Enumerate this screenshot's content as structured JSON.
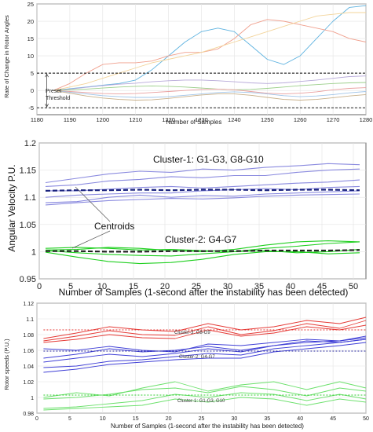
{
  "chart_data": [
    {
      "type": "line",
      "xlabel": "Number of Samples",
      "ylabel": "Rate of Change in Rotor Angles",
      "xlim": [
        1180,
        1280
      ],
      "ylim": [
        -7,
        25
      ],
      "xticks": [
        1180,
        1190,
        1200,
        1210,
        1220,
        1230,
        1240,
        1250,
        1260,
        1270,
        1280
      ],
      "yticks": [
        -5,
        0,
        5,
        10,
        15,
        20,
        25
      ],
      "grid": true,
      "thresholds": [
        5,
        -5
      ],
      "annotation": "Preset\nThreshold",
      "x": [
        1185,
        1190,
        1195,
        1200,
        1205,
        1210,
        1215,
        1220,
        1225,
        1230,
        1235,
        1240,
        1245,
        1250,
        1255,
        1260,
        1265,
        1270,
        1275,
        1280
      ],
      "series": [
        {
          "color": "#5fb3e0",
          "values": [
            0,
            0.5,
            1,
            1.5,
            2,
            3,
            6,
            10,
            14,
            17,
            18,
            17,
            13,
            9,
            7.5,
            10,
            15,
            20,
            24,
            24.5
          ]
        },
        {
          "color": "#f0a08e",
          "values": [
            0,
            2,
            5,
            7.5,
            8,
            8,
            8.5,
            10,
            11,
            11,
            12,
            15,
            19,
            20.5,
            20,
            19,
            18,
            17,
            15,
            14
          ]
        },
        {
          "color": "#f3d49a",
          "values": [
            0,
            1,
            2,
            3.5,
            5,
            6.5,
            8,
            9,
            10,
            11,
            12.5,
            14,
            15.5,
            17,
            18.5,
            20,
            21.5,
            22,
            22.5,
            22.5
          ]
        },
        {
          "color": "#b7a9d9",
          "values": [
            0,
            0.4,
            0.9,
            1.4,
            1.8,
            2.1,
            2.5,
            2.8,
            3,
            3,
            2.8,
            2.5,
            2.2,
            2,
            2.2,
            2.6,
            3,
            3.5,
            4,
            4.2
          ]
        },
        {
          "color": "#9ccf8b",
          "values": [
            0,
            0.2,
            0.4,
            0.7,
            1,
            1.2,
            1.3,
            1.2,
            1,
            0.7,
            0.4,
            0.2,
            0.3,
            0.6,
            1,
            1.4,
            1.7,
            2,
            2.2,
            2.3
          ]
        },
        {
          "color": "#e9a0a0",
          "values": [
            0,
            -0.3,
            -0.6,
            -0.9,
            -1,
            -0.9,
            -0.6,
            -0.3,
            0,
            0.3,
            0.4,
            0.2,
            -0.3,
            -0.8,
            -1,
            -0.8,
            -0.4,
            0.2,
            0.6,
            0.8
          ]
        },
        {
          "color": "#a0c4e8",
          "values": [
            0,
            -0.5,
            -1,
            -1.5,
            -1.8,
            -2,
            -2,
            -1.8,
            -1.4,
            -1,
            -0.6,
            -0.4,
            -0.6,
            -1,
            -1.5,
            -1.8,
            -1.6,
            -1.2,
            -0.7,
            -0.3
          ]
        },
        {
          "color": "#c8b08a",
          "values": [
            0,
            -0.8,
            -1.6,
            -2.2,
            -2.6,
            -2.8,
            -2.7,
            -2.3,
            -1.8,
            -1.3,
            -1,
            -1,
            -1.4,
            -2,
            -2.6,
            -2.8,
            -2.6,
            -2.1,
            -1.6,
            -1.2
          ]
        }
      ]
    },
    {
      "type": "line",
      "xlabel": "Number of Samples (1-second after the instability has been detected)",
      "ylabel": "Angular Velocity P.U.",
      "xlim": [
        0,
        52
      ],
      "ylim": [
        0.95,
        1.2
      ],
      "xticks": [
        0,
        5,
        10,
        15,
        20,
        25,
        30,
        35,
        40,
        45,
        50
      ],
      "yticks": [
        0.95,
        1,
        1.05,
        1.1,
        1.15,
        1.2
      ],
      "ytick_labels": [
        "0.95",
        "1",
        "1.05",
        "1.1",
        "1.15",
        "1.2"
      ],
      "grid": true,
      "annotations": {
        "cluster1": "Cluster-1: G1-G3, G8-G10",
        "cluster2": "Cluster-2: G4-G7",
        "centroids": "Centroids"
      },
      "x": [
        1,
        6,
        11,
        16,
        21,
        26,
        31,
        36,
        41,
        46,
        51
      ],
      "centroids": [
        {
          "color": "#1a237e",
          "values": [
            1.112,
            1.113,
            1.113,
            1.114,
            1.113,
            1.114,
            1.114,
            1.113,
            1.114,
            1.114,
            1.113
          ]
        },
        {
          "color": "#222222",
          "values": [
            1.001,
            1.001,
            1.0,
            1.0,
            1.001,
            1.001,
            1.001,
            1.002,
            1.002,
            1.002,
            1.003
          ]
        }
      ],
      "series": [
        {
          "color": "#8a8adf",
          "values": [
            1.127,
            1.135,
            1.143,
            1.148,
            1.146,
            1.152,
            1.15,
            1.155,
            1.158,
            1.162,
            1.16
          ]
        },
        {
          "color": "#8a8adf",
          "values": [
            1.12,
            1.123,
            1.13,
            1.133,
            1.138,
            1.136,
            1.14,
            1.14,
            1.146,
            1.15,
            1.152
          ]
        },
        {
          "color": "#8a8adf",
          "values": [
            1.112,
            1.112,
            1.115,
            1.118,
            1.12,
            1.117,
            1.12,
            1.123,
            1.126,
            1.128,
            1.132
          ]
        },
        {
          "color": "#8a8adf",
          "values": [
            1.1,
            1.104,
            1.106,
            1.108,
            1.108,
            1.112,
            1.114,
            1.116,
            1.114,
            1.118,
            1.12
          ]
        },
        {
          "color": "#8a8adf",
          "values": [
            1.09,
            1.092,
            1.1,
            1.104,
            1.1,
            1.103,
            1.102,
            1.106,
            1.108,
            1.11,
            1.112
          ]
        },
        {
          "color": "#8a8adf",
          "values": [
            1.086,
            1.09,
            1.094,
            1.096,
            1.098,
            1.097,
            1.099,
            1.102,
            1.104,
            1.105,
            1.106
          ]
        },
        {
          "color": "#1fcf1f",
          "values": [
            1.006,
            1.008,
            1.006,
            1.003,
            1.004,
            1.002,
            1.0,
            1.006,
            1.01,
            1.015,
            1.018
          ]
        },
        {
          "color": "#1fcf1f",
          "values": [
            1.003,
            1.004,
            1.008,
            1.006,
            1.002,
            1.0,
            1.004,
            1.012,
            1.018,
            1.02,
            1.018
          ]
        },
        {
          "color": "#1fcf1f",
          "values": [
            1.002,
            0.998,
            0.995,
            0.993,
            0.992,
            0.996,
            1.0,
            1.002,
            0.998,
            1.0,
            1.004
          ]
        },
        {
          "color": "#1fcf1f",
          "values": [
            0.999,
            0.99,
            0.982,
            0.978,
            0.98,
            0.986,
            0.995,
            1.0,
            1.0,
            0.996,
            0.998
          ]
        }
      ]
    },
    {
      "type": "line",
      "xlabel": "Number of Samples (1-second after the instability has been detected)",
      "ylabel": "Rotor speeds (P.U.)",
      "xlim": [
        0,
        50
      ],
      "ylim": [
        0.98,
        1.12
      ],
      "xticks": [
        0,
        5,
        10,
        15,
        20,
        25,
        30,
        35,
        40,
        45,
        50
      ],
      "yticks": [
        0.98,
        1,
        1.02,
        1.04,
        1.06,
        1.08,
        1.1,
        1.12
      ],
      "ytick_labels": [
        "0.98",
        "1",
        "1.02",
        "1.04",
        "1.06",
        "1.08",
        "1.1",
        "1.12"
      ],
      "grid": true,
      "annotations": {
        "cluster3": "Cluster-3: G8-G9",
        "cluster2": "Cluster-2: G4-G7",
        "cluster1": "Cluster-1: G1-G3, G10"
      },
      "x": [
        1,
        6,
        11,
        16,
        21,
        26,
        31,
        36,
        41,
        46,
        50
      ],
      "centroids": [
        {
          "color": "#e53935",
          "values": [
            1.086,
            1.086,
            1.086,
            1.086,
            1.086,
            1.086,
            1.086,
            1.086,
            1.086,
            1.086,
            1.086
          ]
        },
        {
          "color": "#2c2ca0",
          "values": [
            1.059,
            1.059,
            1.059,
            1.059,
            1.059,
            1.059,
            1.059,
            1.059,
            1.059,
            1.059,
            1.059
          ]
        },
        {
          "color": "#33cc33",
          "values": [
            1.003,
            1.003,
            1.003,
            1.003,
            1.003,
            1.003,
            1.003,
            1.003,
            1.003,
            1.003,
            1.003
          ]
        }
      ],
      "series": [
        {
          "color": "#e53935",
          "values": [
            1.075,
            1.082,
            1.09,
            1.086,
            1.084,
            1.094,
            1.086,
            1.09,
            1.098,
            1.094,
            1.102
          ]
        },
        {
          "color": "#e53935",
          "values": [
            1.072,
            1.078,
            1.085,
            1.08,
            1.079,
            1.09,
            1.08,
            1.085,
            1.094,
            1.088,
            1.098
          ]
        },
        {
          "color": "#e53935",
          "values": [
            1.07,
            1.074,
            1.08,
            1.076,
            1.075,
            1.086,
            1.078,
            1.082,
            1.09,
            1.086,
            1.092
          ]
        },
        {
          "color": "#3f3fd6",
          "values": [
            1.062,
            1.06,
            1.065,
            1.06,
            1.058,
            1.068,
            1.066,
            1.07,
            1.074,
            1.072,
            1.078
          ]
        },
        {
          "color": "#3f3fd6",
          "values": [
            1.05,
            1.055,
            1.062,
            1.058,
            1.06,
            1.065,
            1.06,
            1.066,
            1.072,
            1.07,
            1.074
          ]
        },
        {
          "color": "#3f3fd6",
          "values": [
            1.045,
            1.05,
            1.055,
            1.052,
            1.056,
            1.062,
            1.058,
            1.066,
            1.07,
            1.072,
            1.076
          ]
        },
        {
          "color": "#3f3fd6",
          "values": [
            1.038,
            1.04,
            1.046,
            1.048,
            1.052,
            1.056,
            1.054,
            1.062,
            1.066,
            1.07,
            1.074
          ]
        },
        {
          "color": "#3f3fd6",
          "values": [
            1.032,
            1.036,
            1.042,
            1.045,
            1.048,
            1.05,
            1.05,
            1.058,
            1.062,
            1.066,
            1.07
          ]
        },
        {
          "color": "#6be06b",
          "values": [
            1.0,
            1.006,
            1.002,
            1.012,
            1.02,
            1.008,
            1.016,
            1.02,
            1.01,
            1.02,
            1.012
          ]
        },
        {
          "color": "#6be06b",
          "values": [
            0.998,
            1.0,
            1.004,
            1.01,
            1.012,
            1.006,
            1.014,
            1.01,
            1.002,
            1.012,
            1.008
          ]
        },
        {
          "color": "#6be06b",
          "values": [
            0.986,
            0.988,
            0.992,
            0.996,
            1.004,
            1.0,
            1.006,
            1.004,
            0.996,
            1.004,
            0.998
          ]
        },
        {
          "color": "#6be06b",
          "values": [
            0.984,
            0.986,
            0.988,
            0.99,
            0.998,
            0.994,
            1.0,
            0.998,
            0.99,
            0.998,
            0.994
          ]
        }
      ]
    }
  ]
}
